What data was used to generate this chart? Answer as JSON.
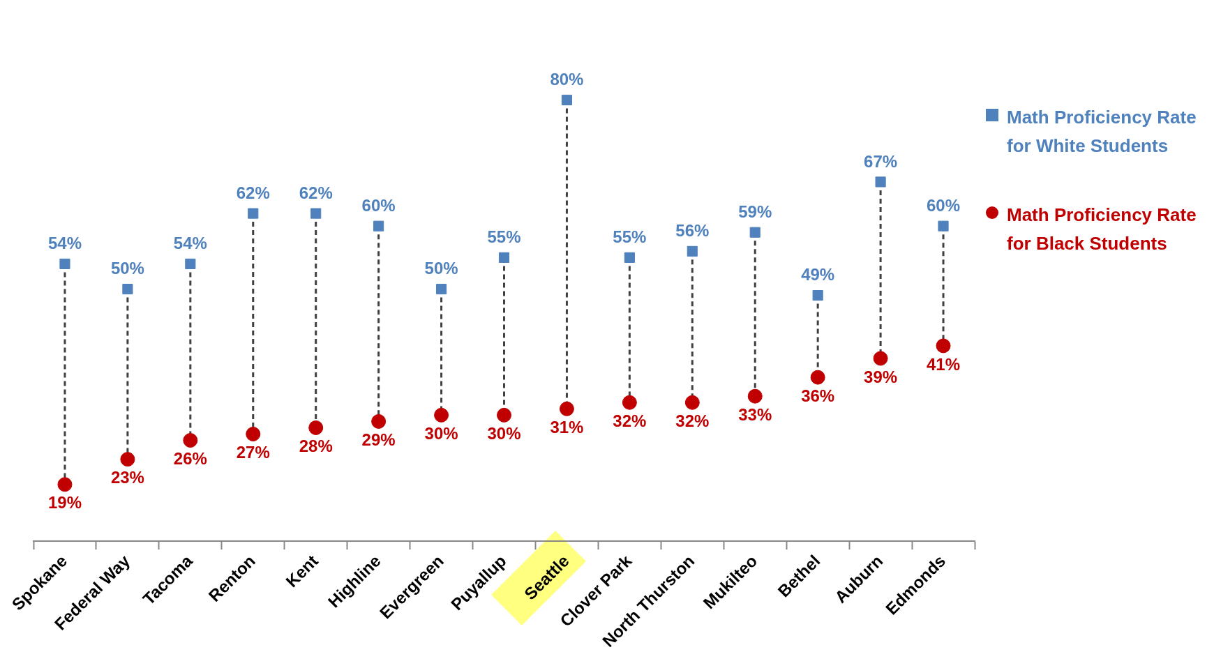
{
  "chart_data": {
    "type": "scatter",
    "categories": [
      "Spokane",
      "Federal Way",
      "Tacoma",
      "Renton",
      "Kent",
      "Highline",
      "Evergreen",
      "Puyallup",
      "Seattle",
      "Clover Park",
      "North Thurston",
      "Mukilteo",
      "Bethel",
      "Auburn",
      "Edmonds"
    ],
    "series": [
      {
        "name": "Math Proficiency Rate for White Students",
        "color": "#4f81bd",
        "marker": "square",
        "values": [
          54,
          50,
          54,
          62,
          62,
          60,
          50,
          55,
          80,
          55,
          56,
          59,
          49,
          67,
          60
        ],
        "value_labels": [
          "54%",
          "50%",
          "54%",
          "62%",
          "62%",
          "60%",
          "50%",
          "55%",
          "80%",
          "55%",
          "56%",
          "59%",
          "49%",
          "67%",
          "60%"
        ]
      },
      {
        "name": "Math Proficiency Rate for Black Students",
        "color": "#c00000",
        "marker": "circle",
        "values": [
          19,
          23,
          26,
          27,
          28,
          29,
          30,
          30,
          31,
          32,
          32,
          33,
          36,
          39,
          41
        ],
        "value_labels": [
          "19%",
          "23%",
          "26%",
          "27%",
          "28%",
          "29%",
          "30%",
          "30%",
          "31%",
          "32%",
          "32%",
          "33%",
          "36%",
          "39%",
          "41%"
        ]
      }
    ],
    "tick_labels": "x",
    "legend": "right",
    "line_style": "dashed"
  }
}
